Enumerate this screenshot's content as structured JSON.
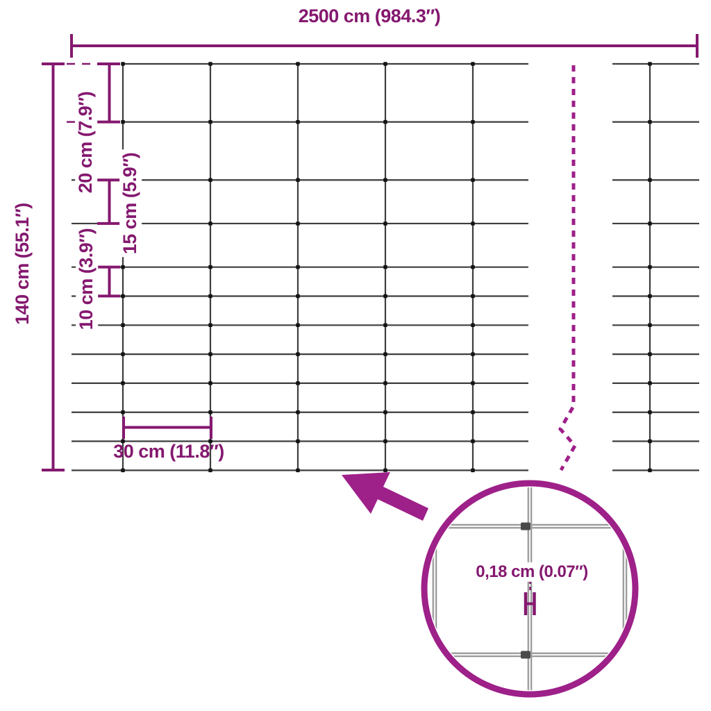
{
  "diagram": {
    "colors": {
      "accent": "#84186F",
      "accent_bright": "#9E2089",
      "wire": "#3D3D3D",
      "wire_light": "#909090"
    },
    "measurements": {
      "total_width": "2500 cm (984.3″)",
      "total_height": "140 cm (55.1″)",
      "row_spacing_top": "20 cm (7.9″)",
      "row_spacing_middle": "15 cm (5.9″)",
      "row_spacing_lower": "10 cm (3.9″)",
      "column_spacing": "30 cm (11.8″)",
      "wire_thickness": "0,18 cm (0.07″)"
    },
    "mesh": {
      "total_width_cm": 2500,
      "total_height_cm": 140,
      "row_heights_cm": [
        20,
        20,
        15,
        15,
        10,
        10,
        10,
        10,
        10,
        10,
        10
      ],
      "column_spacing_cm": 30,
      "wire_thickness_cm": 0.18
    }
  }
}
